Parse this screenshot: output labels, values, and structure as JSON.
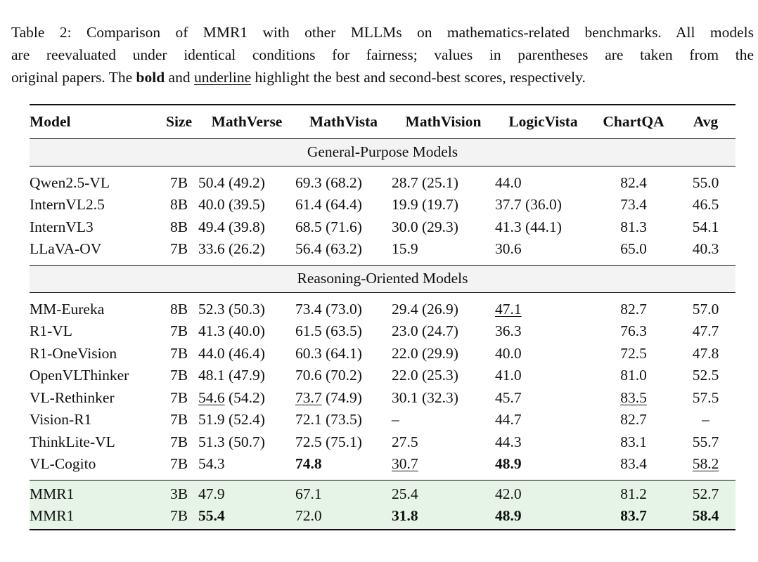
{
  "caption": {
    "label": "Table 2:",
    "line1": "Comparison of MMR1 with other MLLMs on mathematics-related benchmarks. All models",
    "line2": "are reevaluated under identical conditions for fairness; values in parentheses are taken from the",
    "line3_pre": "original papers. The ",
    "bold_word": "bold",
    "and_word": " and ",
    "underline_word": "underline",
    "line3_post": " highlight the best and second-best scores, respectively."
  },
  "table": {
    "headers": [
      "Model",
      "Size",
      "MathVerse",
      "MathVista",
      "MathVision",
      "LogicVista",
      "ChartQA",
      "Avg"
    ],
    "sections": [
      {
        "title": "General-Purpose Models",
        "rows": [
          {
            "model": "Qwen2.5-VL",
            "size": "7B",
            "mathverse": "50.4 (49.2)",
            "mathvista": "69.3 (68.2)",
            "mathvision": "28.7 (25.1)",
            "logicvista": "44.0",
            "chartqa": "82.4",
            "avg": "55.0"
          },
          {
            "model": "InternVL2.5",
            "size": "8B",
            "mathverse": "40.0 (39.5)",
            "mathvista": "61.4 (64.4)",
            "mathvision": "19.9 (19.7)",
            "logicvista": "37.7 (36.0)",
            "chartqa": "73.4",
            "avg": "46.5"
          },
          {
            "model": "InternVL3",
            "size": "8B",
            "mathverse": "49.4 (39.8)",
            "mathvista": "68.5 (71.6)",
            "mathvision": "30.0 (29.3)",
            "logicvista": "41.3 (44.1)",
            "chartqa": "81.3",
            "avg": "54.1"
          },
          {
            "model": "LLaVA-OV",
            "size": "7B",
            "mathverse": "33.6 (26.2)",
            "mathvista": "56.4 (63.2)",
            "mathvision": "15.9",
            "logicvista": "30.6",
            "chartqa": "65.0",
            "avg": "40.3"
          }
        ]
      },
      {
        "title": "Reasoning-Oriented Models",
        "rows": [
          {
            "model": "MM-Eureka",
            "size": "8B",
            "mathverse": "52.3 (50.3)",
            "mathvista": "73.4 (73.0)",
            "mathvision": "29.4 (26.9)",
            "logicvista": "47.1",
            "chartqa": "82.7",
            "avg": "57.0"
          },
          {
            "model": "R1-VL",
            "size": "7B",
            "mathverse": "41.3 (40.0)",
            "mathvista": "61.5 (63.5)",
            "mathvision": "23.0 (24.7)",
            "logicvista": "36.3",
            "chartqa": "76.3",
            "avg": "47.7"
          },
          {
            "model": "R1-OneVision",
            "size": "7B",
            "mathverse": "44.0 (46.4)",
            "mathvista": "60.3 (64.1)",
            "mathvision": "22.0 (29.9)",
            "logicvista": "40.0",
            "chartqa": "72.5",
            "avg": "47.8"
          },
          {
            "model": "OpenVLThinker",
            "size": "7B",
            "mathverse": "48.1 (47.9)",
            "mathvista": "70.6 (70.2)",
            "mathvision": "22.0 (25.3)",
            "logicvista": "41.0",
            "chartqa": "81.0",
            "avg": "52.5"
          },
          {
            "model": "VL-Rethinker",
            "size": "7B",
            "mathverse": "54.6",
            "mathverse_paren": " (54.2)",
            "mathvista": "73.7",
            "mathvista_paren": " (74.9)",
            "mathvision": "30.1 (32.3)",
            "logicvista": "45.7",
            "chartqa": "83.5",
            "avg": "57.5"
          },
          {
            "model": "Vision-R1",
            "size": "7B",
            "mathverse": "51.9 (52.4)",
            "mathvista": "72.1 (73.5)",
            "mathvision": "–",
            "logicvista": "44.7",
            "chartqa": "82.7",
            "avg": "–"
          },
          {
            "model": "ThinkLite-VL",
            "size": "7B",
            "mathverse": "51.3 (50.7)",
            "mathvista": "72.5 (75.1)",
            "mathvision": "27.5",
            "logicvista": "44.3",
            "chartqa": "83.1",
            "avg": "55.7"
          },
          {
            "model": "VL-Cogito",
            "size": "7B",
            "mathverse": "54.3",
            "mathvista": "74.8",
            "mathvision": "30.7",
            "logicvista": "48.9",
            "chartqa": "83.4",
            "avg": "58.2"
          }
        ]
      }
    ],
    "ours": [
      {
        "model": "MMR1",
        "size": "3B",
        "mathverse": "47.9",
        "mathvista": "67.1",
        "mathvision": "25.4",
        "logicvista": "42.0",
        "chartqa": "81.2",
        "avg": "52.7"
      },
      {
        "model": "MMR1",
        "size": "7B",
        "mathverse": "55.4",
        "mathvista": "72.0",
        "mathvision": "31.8",
        "logicvista": "48.9",
        "chartqa": "83.7",
        "avg": "58.4"
      }
    ]
  }
}
